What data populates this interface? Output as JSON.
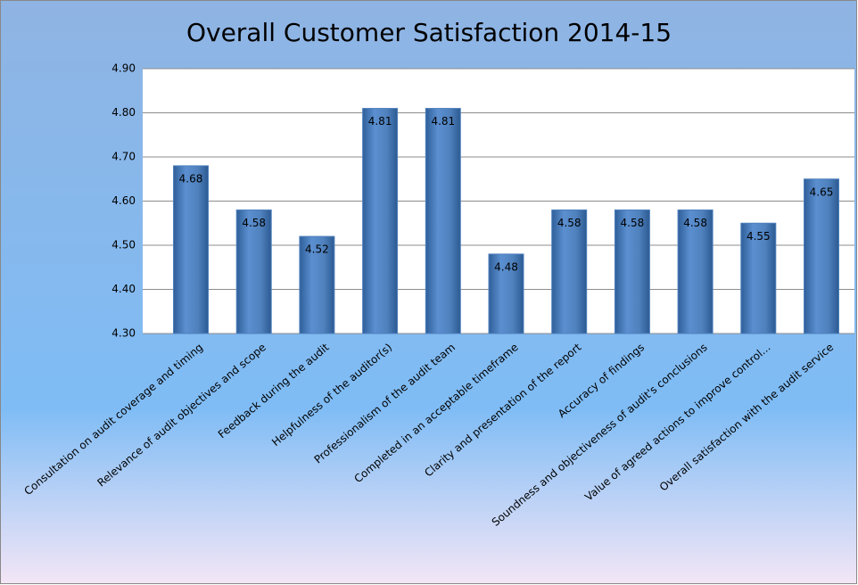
{
  "chart_data": {
    "type": "bar",
    "title": "Overall Customer Satisfaction 2014-15",
    "categories": [
      "Consultation on audit coverage and timing",
      "Relevance of audit objectives and scope",
      "Feedback during the audit",
      "Helpfulness of the auditor(s)",
      "Professionalism of the audit team",
      "Completed in an acceptable timeframe",
      "Clarity and presentation of the report",
      "Accuracy of findings",
      "Soundness and objectiveness of audit's conclusions",
      "Value of agreed actions to improve control...",
      "Overall satisfaction with the audit service"
    ],
    "values": [
      4.68,
      4.58,
      4.52,
      4.81,
      4.81,
      4.48,
      4.58,
      4.58,
      4.58,
      4.55,
      4.65
    ],
    "color": "#4f81bd",
    "ylim": [
      4.3,
      4.9
    ],
    "yticks": [
      {
        "value": 4.3,
        "label": "4.30"
      },
      {
        "value": 4.4,
        "label": "4.40"
      },
      {
        "value": 4.5,
        "label": "4.50"
      },
      {
        "value": 4.6,
        "label": "4.60"
      },
      {
        "value": 4.7,
        "label": "4.70"
      },
      {
        "value": 4.8,
        "label": "4.80"
      },
      {
        "value": 4.9,
        "label": "4.90"
      }
    ],
    "grid": true
  }
}
